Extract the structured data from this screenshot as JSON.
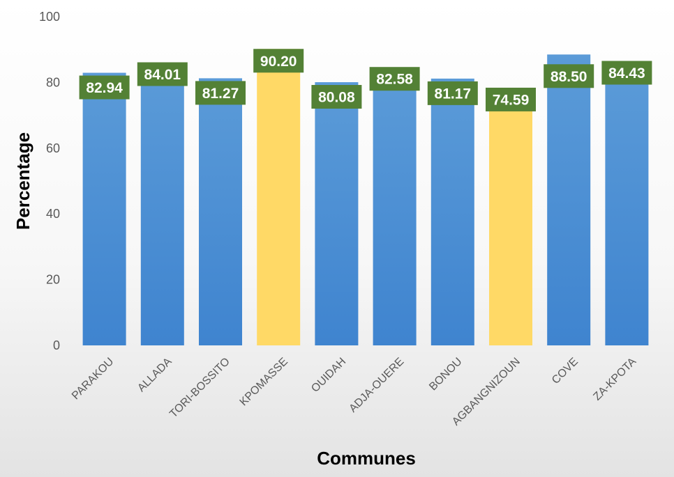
{
  "chart_data": {
    "type": "bar",
    "categories": [
      "PARAKOU",
      "ALLADA",
      "TORI-BOSSITO",
      "KPOMASSE",
      "OUIDAH",
      "ADJA-OUERE",
      "BONOU",
      "AGBANGNIZOUN",
      "COVE",
      "ZA-KPOTA"
    ],
    "values": [
      82.94,
      84.01,
      81.27,
      90.2,
      80.08,
      82.58,
      81.17,
      74.59,
      88.5,
      84.43
    ],
    "data_labels": [
      "82.94",
      "84.01",
      "81.27",
      "90.20",
      "80.08",
      "82.58",
      "81.17",
      "74.59",
      "88.50",
      "84.43"
    ],
    "highlighted": [
      false,
      false,
      false,
      true,
      false,
      false,
      false,
      true,
      false,
      false
    ],
    "xlabel": "Communes",
    "ylabel": "Percentage",
    "ylim": [
      0,
      100
    ],
    "yticks": [
      "0",
      "20",
      "40",
      "60",
      "80",
      "100"
    ],
    "grid": false,
    "legend": "none",
    "colors": {
      "bar": "#4a8fd6",
      "bar_highlight": "#ffd966",
      "label_box": "#538135",
      "label_text": "#ffffff"
    }
  }
}
